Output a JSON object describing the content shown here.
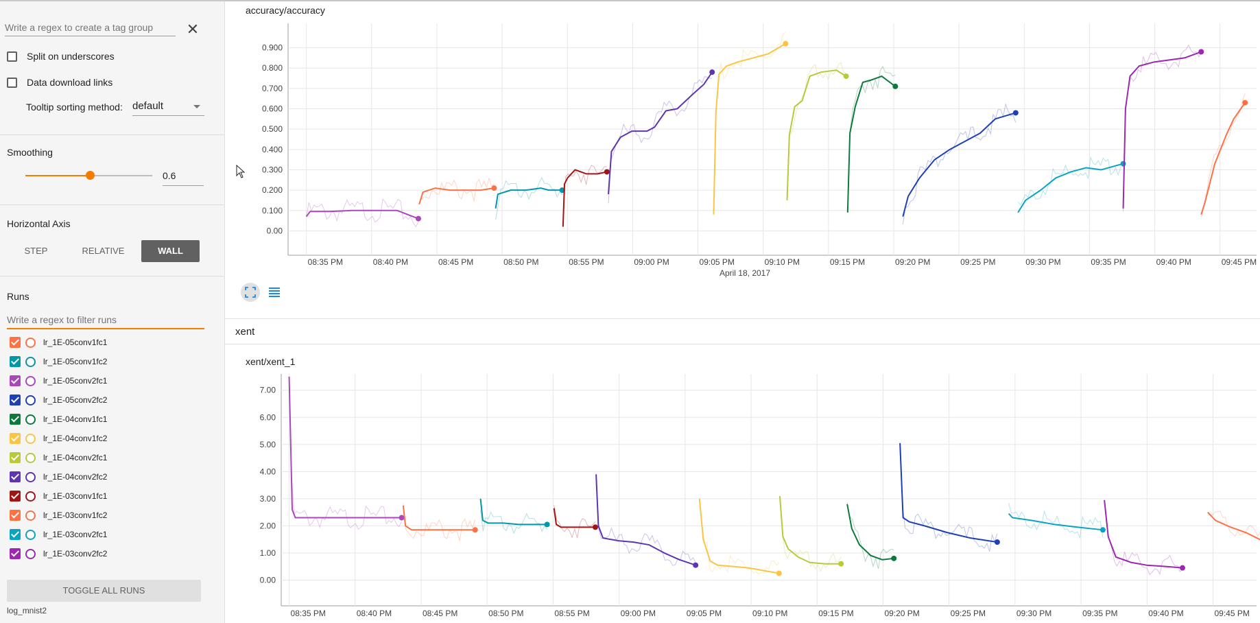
{
  "sidebar": {
    "tag_regex_placeholder": "Write a regex to create a tag group",
    "split_underscores": "Split on underscores",
    "data_download": "Data download links",
    "tooltip_label": "Tooltip sorting method:",
    "tooltip_value": "default",
    "smoothing_title": "Smoothing",
    "smoothing_value": "0.6",
    "smoothing_fraction": 0.6,
    "axis_title": "Horizontal Axis",
    "axis_step": "STEP",
    "axis_relative": "RELATIVE",
    "axis_wall": "WALL",
    "axis_selected": "WALL",
    "runs_title": "Runs",
    "runs_filter_placeholder": "Write a regex to filter runs",
    "toggle_all": "TOGGLE ALL RUNS",
    "logdir": "log_mnist2",
    "runs": [
      {
        "name": "lr_1E-05conv1fc1",
        "color": "#ff7043",
        "checked": true
      },
      {
        "name": "lr_1E-05conv1fc2",
        "color": "#0097a7",
        "checked": true
      },
      {
        "name": "lr_1E-05conv2fc1",
        "color": "#ab47bc",
        "checked": true
      },
      {
        "name": "lr_1E-05conv2fc2",
        "color": "#1e40b5",
        "checked": true
      },
      {
        "name": "lr_1E-04conv1fc1",
        "color": "#0b7a3c",
        "checked": true
      },
      {
        "name": "lr_1E-04conv1fc2",
        "color": "#fbc543",
        "checked": true
      },
      {
        "name": "lr_1E-04conv2fc1",
        "color": "#b9c93a",
        "checked": true
      },
      {
        "name": "lr_1E-04conv2fc2",
        "color": "#5e35b1",
        "checked": true
      },
      {
        "name": "lr_1E-03conv1fc1",
        "color": "#a31515",
        "checked": true
      },
      {
        "name": "lr_1E-03conv1fc2",
        "color": "#ff7043",
        "checked": true
      },
      {
        "name": "lr_1E-03conv2fc1",
        "color": "#0aa4c2",
        "checked": true
      },
      {
        "name": "lr_1E-03conv2fc2",
        "color": "#9c27b0",
        "checked": true
      }
    ]
  },
  "main": {
    "group_xent": "xent"
  },
  "chart_data": [
    {
      "type": "line",
      "title": "accuracy/accuracy",
      "xlabel": "April 18, 2017",
      "ylim": [
        -0.05,
        0.95
      ],
      "yticks": [
        "0.00",
        "0.100",
        "0.200",
        "0.300",
        "0.400",
        "0.500",
        "0.600",
        "0.700",
        "0.800",
        "0.900"
      ],
      "xticks": [
        "08:35 PM",
        "08:40 PM",
        "08:45 PM",
        "08:50 PM",
        "08:55 PM",
        "09:00 PM",
        "09:05 PM",
        "09:10 PM",
        "09:15 PM",
        "09:20 PM",
        "09:25 PM",
        "09:30 PM",
        "09:35 PM",
        "09:40 PM",
        "09:45 PM"
      ],
      "xlim_minutes": [
        -1,
        74
      ],
      "series": [
        {
          "name": "lr_1E-05conv2fc1",
          "color": "#ab47bc",
          "x": [
            0,
            0.5,
            3,
            6,
            9,
            12,
            14.8
          ],
          "y": [
            0.07,
            0.095,
            0.095,
            0.1,
            0.1,
            0.1,
            0.06
          ]
        },
        {
          "name": "lr_1E-05conv1fc1",
          "color": "#ff7043",
          "x": [
            14.9,
            15.4,
            17,
            19,
            21,
            23,
            24.8
          ],
          "y": [
            0.13,
            0.19,
            0.21,
            0.2,
            0.2,
            0.2,
            0.21
          ]
        },
        {
          "name": "lr_1E-05conv1fc2",
          "color": "#0097a7",
          "x": [
            25,
            25.3,
            27,
            29,
            31,
            32,
            33.8
          ],
          "y": [
            0.11,
            0.18,
            0.2,
            0.2,
            0.21,
            0.2,
            0.2
          ]
        },
        {
          "name": "lr_1E-03conv1fc1",
          "color": "#a31515",
          "x": [
            33.9,
            34.1,
            34.5,
            35.5,
            37,
            38.5,
            39.7
          ],
          "y": [
            0.02,
            0.23,
            0.26,
            0.3,
            0.28,
            0.28,
            0.29
          ]
        },
        {
          "name": "lr_1E-04conv2fc2",
          "color": "#5e35b1",
          "x": [
            39.9,
            40.3,
            41.5,
            43,
            45,
            46,
            47.5,
            49,
            51,
            52.5,
            53.6
          ],
          "y": [
            0.18,
            0.39,
            0.46,
            0.49,
            0.49,
            0.51,
            0.59,
            0.6,
            0.67,
            0.72,
            0.78
          ]
        },
        {
          "name": "lr_1E-04conv1fc2",
          "color": "#fbc543",
          "x": [
            53.8,
            54.1,
            54.5,
            55.5,
            57,
            59,
            61,
            63.3
          ],
          "y": [
            0.08,
            0.58,
            0.77,
            0.81,
            0.83,
            0.85,
            0.87,
            0.92
          ]
        },
        {
          "name": "lr_1E-04conv2fc1",
          "color": "#b9c93a",
          "x": [
            63.5,
            63.8,
            64.5,
            65.5,
            66.5,
            68,
            70,
            71.3
          ],
          "y": [
            0.15,
            0.47,
            0.61,
            0.64,
            0.76,
            0.78,
            0.79,
            0.76
          ]
        },
        {
          "name": "lr_1E-04conv1fc1",
          "color": "#0b7a3c",
          "x": [
            71.5,
            71.8,
            72.5,
            73.5,
            74.5,
            76,
            77.8
          ],
          "y": [
            0.09,
            0.48,
            0.61,
            0.73,
            0.74,
            0.76,
            0.71
          ]
        },
        {
          "name": "lr_1E-05conv2fc2",
          "color": "#1e40b5",
          "x": [
            78.8,
            79.5,
            81,
            83,
            85,
            87,
            89,
            91,
            93.7
          ],
          "y": [
            0.07,
            0.17,
            0.26,
            0.35,
            0.4,
            0.44,
            0.48,
            0.55,
            0.58
          ]
        },
        {
          "name": "lr_1E-03conv2fc1",
          "color": "#0aa4c2",
          "x": [
            94,
            95,
            97,
            99,
            101,
            103,
            105,
            107.9
          ],
          "y": [
            0.09,
            0.15,
            0.2,
            0.26,
            0.29,
            0.31,
            0.3,
            0.33
          ]
        },
        {
          "name": "lr_1E-03conv2fc2",
          "color": "#9c27b0",
          "x": [
            107.9,
            108.2,
            108.8,
            110,
            112,
            114,
            116,
            118.2
          ],
          "y": [
            0.11,
            0.6,
            0.76,
            0.81,
            0.83,
            0.84,
            0.85,
            0.88
          ]
        },
        {
          "name": "lr_1E-03conv1fc2",
          "color": "#ff7043",
          "x": [
            118.2,
            118.7,
            120,
            121.5,
            122.5,
            124
          ],
          "y": [
            0.08,
            0.14,
            0.33,
            0.47,
            0.55,
            0.63
          ]
        }
      ]
    },
    {
      "type": "line",
      "title": "xent/xent_1",
      "ylim": [
        -0.9,
        7.75
      ],
      "yticks": [
        "0.00",
        "1.00",
        "2.00",
        "3.00",
        "4.00",
        "5.00",
        "6.00",
        "7.00"
      ],
      "xticks": [
        "08:35 PM",
        "08:40 PM",
        "08:45 PM",
        "08:50 PM",
        "08:55 PM",
        "09:00 PM",
        "09:05 PM",
        "09:10 PM",
        "09:15 PM",
        "09:20 PM",
        "09:25 PM",
        "09:30 PM",
        "09:35 PM",
        "09:40 PM",
        "09:45 PM"
      ],
      "series": [
        {
          "name": "lr_1E-05conv2fc1",
          "color": "#ab47bc",
          "x": [
            0,
            0.4,
            0.8,
            2,
            6,
            10,
            14.7
          ],
          "y": [
            7.5,
            2.6,
            2.3,
            2.3,
            2.3,
            2.3,
            2.3
          ]
        },
        {
          "name": "lr_1E-05conv1fc1",
          "color": "#ff7043",
          "x": [
            14.9,
            15.2,
            16,
            18,
            20,
            22,
            24.3
          ],
          "y": [
            2.75,
            2.0,
            1.85,
            1.85,
            1.85,
            1.85,
            1.85
          ]
        },
        {
          "name": "lr_1E-05conv1fc2",
          "color": "#0097a7",
          "x": [
            25,
            25.3,
            26,
            28,
            30,
            32,
            33.7
          ],
          "y": [
            3.0,
            2.2,
            2.1,
            2.1,
            2.05,
            2.05,
            2.05
          ]
        },
        {
          "name": "lr_1E-03conv1fc1",
          "color": "#a31515",
          "x": [
            34.6,
            34.9,
            35.5,
            37,
            38.5,
            40
          ],
          "y": [
            2.65,
            2.05,
            1.95,
            1.95,
            1.95,
            1.95
          ]
        },
        {
          "name": "lr_1E-04conv2fc2",
          "color": "#5e35b1",
          "x": [
            40.1,
            40.4,
            41,
            43,
            45,
            47,
            49,
            51,
            53.1
          ],
          "y": [
            3.9,
            2.0,
            1.55,
            1.45,
            1.4,
            1.3,
            1.0,
            0.75,
            0.55
          ]
        },
        {
          "name": "lr_1E-04conv1fc2",
          "color": "#fbc543",
          "x": [
            53.6,
            54.1,
            55,
            56,
            58,
            60,
            62,
            64
          ],
          "y": [
            3.0,
            1.5,
            0.7,
            0.55,
            0.5,
            0.45,
            0.35,
            0.25
          ]
        },
        {
          "name": "lr_1E-04conv2fc1",
          "color": "#b9c93a",
          "x": [
            64.1,
            64.5,
            65.2,
            66.5,
            68,
            70,
            72.1
          ],
          "y": [
            3.1,
            1.6,
            1.15,
            0.85,
            0.65,
            0.6,
            0.6
          ]
        },
        {
          "name": "lr_1E-04conv1fc1",
          "color": "#0b7a3c",
          "x": [
            72.9,
            73.5,
            74.5,
            76,
            77.5,
            79
          ],
          "y": [
            2.8,
            1.9,
            1.3,
            0.9,
            0.75,
            0.8
          ]
        },
        {
          "name": "lr_1E-05conv2fc2",
          "color": "#1e40b5",
          "x": [
            79.8,
            80.2,
            81,
            83,
            86,
            89,
            92.5
          ],
          "y": [
            5.05,
            2.3,
            2.15,
            2.0,
            1.75,
            1.55,
            1.4
          ]
        },
        {
          "name": "lr_1E-03conv2fc1",
          "color": "#0aa4c2",
          "x": [
            94,
            94.5,
            97,
            100,
            103,
            106.3
          ],
          "y": [
            2.45,
            2.3,
            2.2,
            2.05,
            1.95,
            1.85
          ]
        },
        {
          "name": "lr_1E-03conv2fc2",
          "color": "#9c27b0",
          "x": [
            106.5,
            107,
            108,
            110,
            112,
            114.5,
            116.7
          ],
          "y": [
            2.95,
            1.6,
            0.85,
            0.65,
            0.55,
            0.5,
            0.45
          ]
        },
        {
          "name": "lr_1E-03conv1fc2",
          "color": "#ff7043",
          "x": [
            120,
            121,
            123,
            125,
            127.5
          ],
          "y": [
            2.5,
            2.2,
            1.95,
            1.75,
            1.4
          ]
        }
      ]
    }
  ]
}
